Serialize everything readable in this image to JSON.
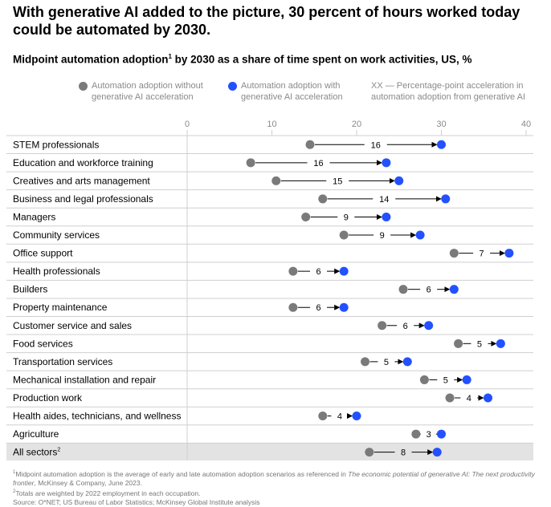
{
  "headline": "With generative AI added to the picture, 30 percent of hours worked today could be automated by 2030.",
  "subtitle_pre": "Midpoint automation adoption",
  "subtitle_sup": "1",
  "subtitle_post": " by 2030 as a share of time spent on work activities, US, %",
  "legend": {
    "without": "Automation adoption without\ngenerative AI acceleration",
    "with": "Automation adoption with\ngenerative AI acceleration",
    "accel": "XX — Percentage-point acceleration in\nautomation adoption from generative AI"
  },
  "colors": {
    "without": "#7a7a7a",
    "with": "#2251ff",
    "grid": "#cfcfcf",
    "highlight": "#e3e3e3"
  },
  "chart_data": {
    "type": "dumbbell",
    "xlim": [
      0,
      40
    ],
    "xticks": [
      0,
      10,
      20,
      30,
      40
    ],
    "series": [
      {
        "name": "Automation adoption without generative AI acceleration"
      },
      {
        "name": "Automation adoption with generative AI acceleration"
      }
    ],
    "rows": [
      {
        "label": "STEM professionals",
        "without": 14.5,
        "with": 30,
        "accel": "16"
      },
      {
        "label": "Education and workforce training",
        "without": 7.5,
        "with": 23.5,
        "accel": "16"
      },
      {
        "label": "Creatives and arts management",
        "without": 10.5,
        "with": 25,
        "accel": "15"
      },
      {
        "label": "Business and legal professionals",
        "without": 16,
        "with": 30.5,
        "accel": "14"
      },
      {
        "label": "Managers",
        "without": 14,
        "with": 23.5,
        "accel": "9"
      },
      {
        "label": "Community services",
        "without": 18.5,
        "with": 27.5,
        "accel": "9"
      },
      {
        "label": "Office support",
        "without": 31.5,
        "with": 38,
        "accel": "7"
      },
      {
        "label": "Health professionals",
        "without": 12.5,
        "with": 18.5,
        "accel": "6"
      },
      {
        "label": "Builders",
        "without": 25.5,
        "with": 31.5,
        "accel": "6"
      },
      {
        "label": "Property maintenance",
        "without": 12.5,
        "with": 18.5,
        "accel": "6"
      },
      {
        "label": "Customer service and sales",
        "without": 23,
        "with": 28.5,
        "accel": "6"
      },
      {
        "label": "Food services",
        "without": 32,
        "with": 37,
        "accel": "5"
      },
      {
        "label": "Transportation services",
        "without": 21,
        "with": 26,
        "accel": "5"
      },
      {
        "label": "Mechanical installation and repair",
        "without": 28,
        "with": 33,
        "accel": "5"
      },
      {
        "label": "Production work",
        "without": 31,
        "with": 35.5,
        "accel": "4"
      },
      {
        "label": "Health aides, technicians, and wellness",
        "without": 16,
        "with": 20,
        "accel": "4"
      },
      {
        "label": "Agriculture",
        "without": 27,
        "with": 30,
        "accel": "3"
      },
      {
        "label": "All sectors",
        "label_sup": "2",
        "without": 21.5,
        "with": 29.5,
        "accel": "8",
        "highlight": true
      }
    ]
  },
  "footnotes": {
    "f1_sup": "1",
    "f1_pre": "Midpoint automation adoption is the average of early and late automation adoption scenarios as referenced in ",
    "f1_italic": "The economic potential of generative AI: The next productivity frontier",
    "f1_post": ", McKinsey & Company, June 2023.",
    "f2_sup": "2",
    "f2": "Totals are weighted by 2022 employment in each occupation.",
    "source": "Source: O*NET; US Bureau of Labor Statistics; McKinsey Global Institute analysis"
  }
}
